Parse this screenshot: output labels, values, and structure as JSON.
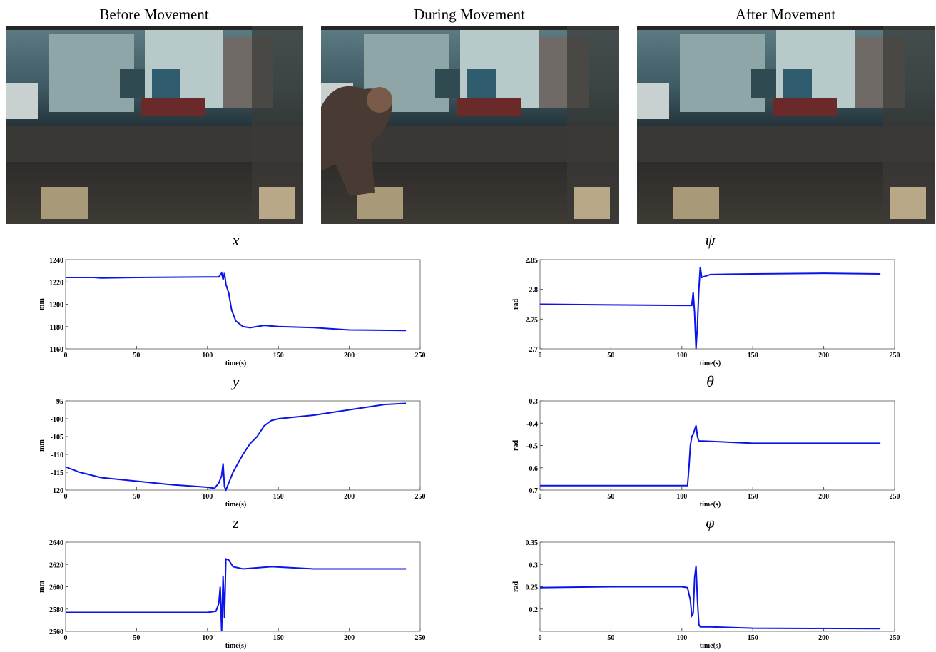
{
  "images": [
    {
      "title": "Before Movement"
    },
    {
      "title": "During Movement"
    },
    {
      "title": "After Movement"
    }
  ],
  "chart_data": [
    {
      "type": "line",
      "title": "x",
      "xlabel": "time(s)",
      "ylabel": "mm",
      "color": "#0a14e6",
      "xlim": [
        0,
        250
      ],
      "xticks": [
        0,
        50,
        100,
        150,
        200,
        250
      ],
      "ylim": [
        1160,
        1240
      ],
      "yticks": [
        1160,
        1180,
        1200,
        1220,
        1240
      ],
      "x": [
        0,
        20,
        25,
        50,
        100,
        108,
        110,
        111,
        112,
        113,
        115,
        117,
        120,
        125,
        130,
        140,
        150,
        175,
        200,
        240
      ],
      "values": [
        1224,
        1224,
        1223.5,
        1224,
        1224.5,
        1224.5,
        1228,
        1222,
        1228,
        1218,
        1210,
        1195,
        1185,
        1180,
        1179,
        1181,
        1180,
        1179,
        1177,
        1176.5
      ]
    },
    {
      "type": "line",
      "title": "y",
      "xlabel": "time(s)",
      "ylabel": "mm",
      "color": "#0a14e6",
      "xlim": [
        0,
        250
      ],
      "xticks": [
        0,
        50,
        100,
        150,
        200,
        250
      ],
      "ylim": [
        -120,
        -95
      ],
      "yticks": [
        -120,
        -115,
        -110,
        -105,
        -100,
        -95
      ],
      "x": [
        0,
        10,
        25,
        50,
        75,
        100,
        105,
        108,
        110,
        111,
        112,
        113,
        115,
        118,
        125,
        130,
        135,
        140,
        145,
        150,
        175,
        200,
        225,
        240
      ],
      "values": [
        -113.5,
        -115,
        -116.5,
        -117.5,
        -118.5,
        -119.2,
        -119.5,
        -118,
        -116,
        -112.5,
        -119,
        -120,
        -118,
        -115,
        -110,
        -107,
        -105,
        -102,
        -100.5,
        -100,
        -99,
        -97.5,
        -96,
        -95.7
      ]
    },
    {
      "type": "line",
      "title": "z",
      "xlabel": "time(s)",
      "ylabel": "mm",
      "color": "#0a14e6",
      "xlim": [
        0,
        250
      ],
      "xticks": [
        0,
        50,
        100,
        150,
        200,
        250
      ],
      "ylim": [
        2560,
        2640
      ],
      "yticks": [
        2560,
        2580,
        2600,
        2620,
        2640
      ],
      "x": [
        0,
        50,
        100,
        106,
        108,
        109,
        110,
        111,
        112,
        113,
        115,
        118,
        125,
        145,
        175,
        240
      ],
      "values": [
        2577,
        2577,
        2577,
        2578,
        2585,
        2600,
        2560,
        2610,
        2572,
        2625,
        2624,
        2618,
        2616,
        2618,
        2616,
        2616
      ]
    },
    {
      "type": "line",
      "title": "ψ",
      "xlabel": "time(s)",
      "ylabel": "rad",
      "color": "#0a14e6",
      "xlim": [
        0,
        250
      ],
      "xticks": [
        0,
        50,
        100,
        150,
        200,
        250
      ],
      "ylim": [
        2.7,
        2.85
      ],
      "yticks": [
        2.7,
        2.75,
        2.8,
        2.85
      ],
      "x": [
        0,
        50,
        100,
        107,
        108,
        109,
        110,
        111,
        112,
        113,
        114,
        120,
        150,
        200,
        240
      ],
      "values": [
        2.775,
        2.774,
        2.773,
        2.773,
        2.795,
        2.76,
        2.7,
        2.74,
        2.8,
        2.838,
        2.82,
        2.825,
        2.826,
        2.827,
        2.826
      ]
    },
    {
      "type": "line",
      "title": "θ",
      "xlabel": "time(s)",
      "ylabel": "rad",
      "color": "#0a14e6",
      "xlim": [
        0,
        250
      ],
      "xticks": [
        0,
        50,
        100,
        150,
        200,
        250
      ],
      "ylim": [
        -0.7,
        -0.3
      ],
      "yticks": [
        -0.7,
        -0.6,
        -0.5,
        -0.4,
        -0.3
      ],
      "x": [
        0,
        100,
        104,
        105,
        106,
        107,
        108,
        109,
        110,
        111,
        112,
        115,
        150,
        240
      ],
      "values": [
        -0.68,
        -0.68,
        -0.68,
        -0.6,
        -0.5,
        -0.46,
        -0.45,
        -0.43,
        -0.41,
        -0.46,
        -0.48,
        -0.48,
        -0.49,
        -0.49
      ]
    },
    {
      "type": "line",
      "title": "φ",
      "xlabel": "time(s)",
      "ylabel": "rad",
      "color": "#0a14e6",
      "xlim": [
        0,
        250
      ],
      "xticks": [
        0,
        50,
        100,
        150,
        200,
        250
      ],
      "ylim": [
        0.15,
        0.35
      ],
      "yticks": [
        0.2,
        0.25,
        0.3,
        0.35
      ],
      "x": [
        0,
        50,
        100,
        104,
        106,
        107,
        108,
        109,
        110,
        111,
        112,
        113,
        120,
        150,
        240
      ],
      "values": [
        0.248,
        0.25,
        0.25,
        0.248,
        0.22,
        0.185,
        0.19,
        0.27,
        0.297,
        0.22,
        0.165,
        0.16,
        0.16,
        0.157,
        0.156
      ]
    }
  ]
}
